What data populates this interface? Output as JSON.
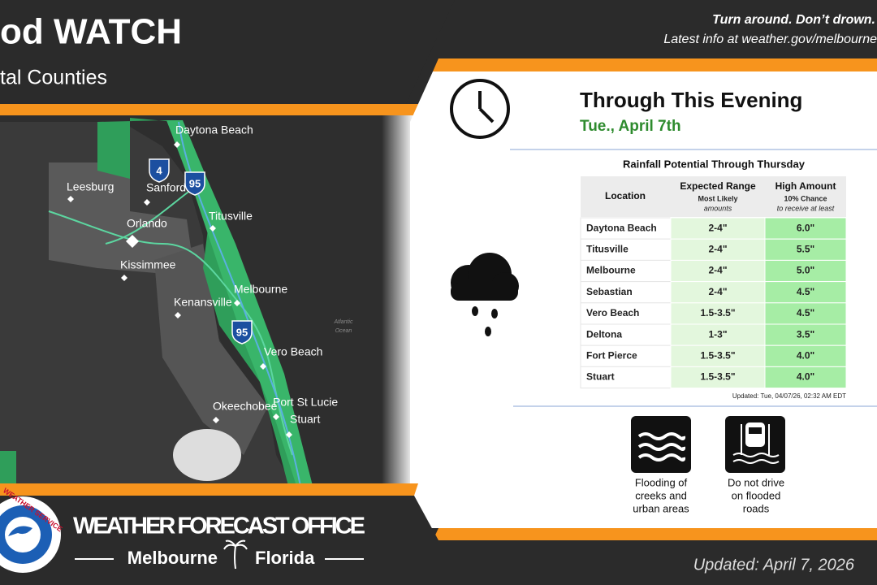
{
  "header": {
    "title": "od WATCH",
    "subtitle": "tal Counties",
    "tagline": "Turn around. Don’t drown.",
    "info": "Latest info at weather.gov/melbourne"
  },
  "map": {
    "cities": [
      "Daytona Beach",
      "Leesburg",
      "Sanford",
      "Orlando",
      "Titusville",
      "Kissimmee",
      "Melbourne",
      "Kenansville",
      "Vero Beach",
      "Okeechobee",
      "Port St Lucie",
      "Stuart"
    ],
    "shields": [
      "4",
      "95",
      "95"
    ],
    "ocean": [
      "Atlantic",
      "Ocean"
    ]
  },
  "panel": {
    "heading": "Through This Evening",
    "date": "Tue., April 7th",
    "table": {
      "title": "Rainfall Potential Through Thursday",
      "headers": {
        "location": "Location",
        "expected": "Expected Range",
        "expected_sub1": "Most Likely",
        "expected_sub2": "amounts",
        "high": "High Amount",
        "high_sub1": "10% Chance",
        "high_sub2": "to receive at least"
      },
      "rows": [
        [
          "Daytona Beach",
          "2-4\"",
          "6.0\""
        ],
        [
          "Titusville",
          "2-4\"",
          "5.5\""
        ],
        [
          "Melbourne",
          "2-4\"",
          "5.0\""
        ],
        [
          "Sebastian",
          "2-4\"",
          "4.5\""
        ],
        [
          "Vero Beach",
          "1.5-3.5\"",
          "4.5\""
        ],
        [
          "Deltona",
          "1-3\"",
          "3.5\""
        ],
        [
          "Fort Pierce",
          "1.5-3.5\"",
          "4.0\""
        ],
        [
          "Stuart",
          "1.5-3.5\"",
          "4.0\""
        ]
      ],
      "updated": "Updated: Tue, 04/07/26, 02:32 AM EDT"
    },
    "icons": [
      [
        "Flooding of",
        "creeks and",
        "urban areas"
      ],
      [
        "Do not drive",
        "on flooded",
        "roads"
      ]
    ]
  },
  "footer": {
    "office": "WEATHER FORECAST OFFICE",
    "city": "Melbourne",
    "state": "Florida",
    "updated": "Updated: April 7, 2026",
    "logo": "WEATHER SERVICE"
  }
}
